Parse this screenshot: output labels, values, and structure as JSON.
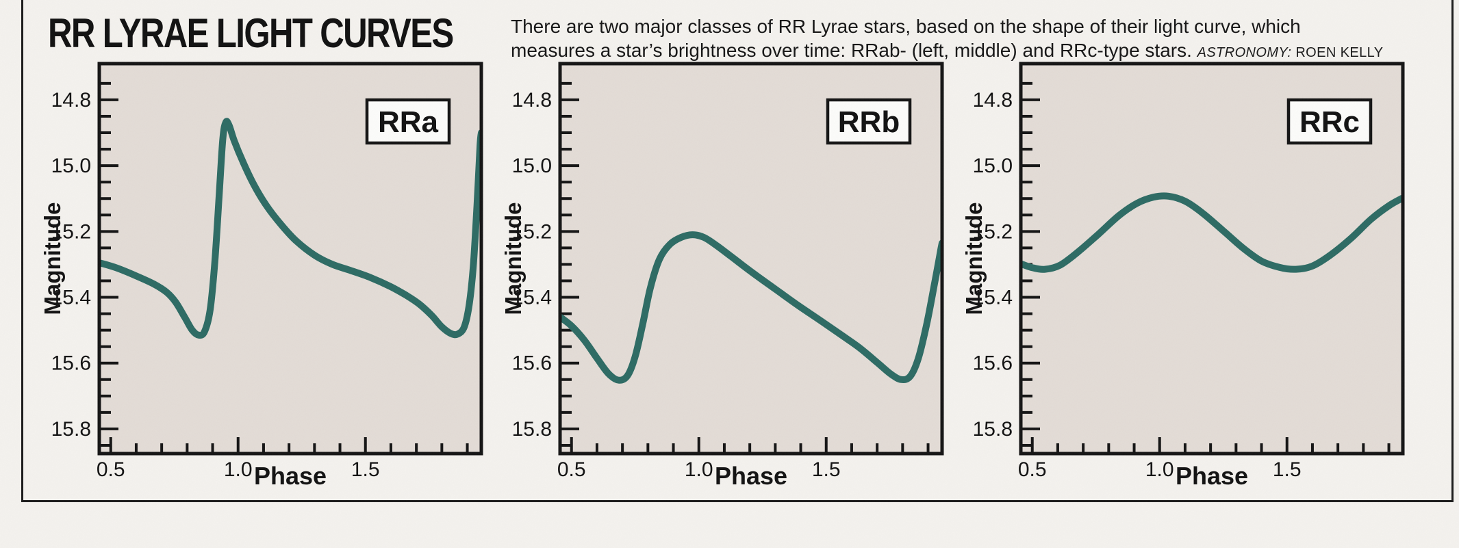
{
  "figure": {
    "title": "RR LYRAE LIGHT CURVES",
    "caption": {
      "line1": "There are two major classes of RR Lyrae stars, based on the shape of their light curve, which",
      "line2": "measures a star’s brightness over time: RRab- (left, middle) and RRc-type stars.",
      "credit_magazine": "ASTRONOMY:",
      "credit_name": " ROEN KELLY"
    },
    "colors": {
      "page_bg": "#f5f3ef",
      "frame_border": "#1b1b1b",
      "plot_bg": "#e4ddd7",
      "curve": "#2d6b64",
      "axis": "#141414",
      "text": "#121212",
      "label_box_bg": "#fdfdfb"
    }
  },
  "chart_data": [
    {
      "type": "line",
      "label": "RRa",
      "star_class": "RRab-type",
      "xlabel": "Phase",
      "ylabel": "Magnitude",
      "x_tick_labels": [
        "0.5",
        "1.0",
        "1.5"
      ],
      "x_tick_values": [
        0.5,
        1.0,
        1.5
      ],
      "x_minor_tick_step": 0.1,
      "y_tick_labels": [
        "14.8",
        "15.0",
        "15.2",
        "15.4",
        "15.6",
        "15.8"
      ],
      "y_tick_values": [
        14.8,
        15.0,
        15.2,
        15.4,
        15.6,
        15.8
      ],
      "y_minor_tick_step": 0.05,
      "xlim": [
        0.455,
        1.955
      ],
      "ylim": [
        14.69,
        15.875
      ],
      "y_axis_inverted_magnitude": true,
      "grid": false,
      "points": [
        [
          0.455,
          15.295
        ],
        [
          0.52,
          15.31
        ],
        [
          0.6,
          15.335
        ],
        [
          0.67,
          15.36
        ],
        [
          0.72,
          15.385
        ],
        [
          0.755,
          15.415
        ],
        [
          0.79,
          15.46
        ],
        [
          0.82,
          15.5
        ],
        [
          0.845,
          15.515
        ],
        [
          0.868,
          15.505
        ],
        [
          0.89,
          15.44
        ],
        [
          0.908,
          15.3
        ],
        [
          0.925,
          15.1
        ],
        [
          0.94,
          14.92
        ],
        [
          0.952,
          14.868
        ],
        [
          0.965,
          14.878
        ],
        [
          0.985,
          14.925
        ],
        [
          1.02,
          14.99
        ],
        [
          1.06,
          15.055
        ],
        [
          1.11,
          15.12
        ],
        [
          1.17,
          15.18
        ],
        [
          1.23,
          15.23
        ],
        [
          1.3,
          15.272
        ],
        [
          1.37,
          15.3
        ],
        [
          1.44,
          15.318
        ],
        [
          1.52,
          15.34
        ],
        [
          1.6,
          15.368
        ],
        [
          1.66,
          15.394
        ],
        [
          1.71,
          15.42
        ],
        [
          1.76,
          15.455
        ],
        [
          1.8,
          15.49
        ],
        [
          1.835,
          15.51
        ],
        [
          1.862,
          15.512
        ],
        [
          1.888,
          15.49
        ],
        [
          1.908,
          15.42
        ],
        [
          1.924,
          15.3
        ],
        [
          1.938,
          15.12
        ],
        [
          1.95,
          14.94
        ],
        [
          1.955,
          14.9
        ]
      ]
    },
    {
      "type": "line",
      "label": "RRb",
      "star_class": "RRab-type",
      "xlabel": "Phase",
      "ylabel": "Magnitude",
      "x_tick_labels": [
        "0.5",
        "1.0",
        "1.5"
      ],
      "x_tick_values": [
        0.5,
        1.0,
        1.5
      ],
      "x_minor_tick_step": 0.1,
      "y_tick_labels": [
        "14.8",
        "15.0",
        "15.2",
        "15.4",
        "15.6",
        "15.8"
      ],
      "y_tick_values": [
        14.8,
        15.0,
        15.2,
        15.4,
        15.6,
        15.8
      ],
      "y_minor_tick_step": 0.05,
      "xlim": [
        0.455,
        1.955
      ],
      "ylim": [
        14.69,
        15.875
      ],
      "y_axis_inverted_magnitude": true,
      "grid": false,
      "points": [
        [
          0.455,
          15.46
        ],
        [
          0.5,
          15.487
        ],
        [
          0.55,
          15.53
        ],
        [
          0.6,
          15.585
        ],
        [
          0.645,
          15.632
        ],
        [
          0.685,
          15.652
        ],
        [
          0.72,
          15.638
        ],
        [
          0.75,
          15.58
        ],
        [
          0.78,
          15.48
        ],
        [
          0.81,
          15.37
        ],
        [
          0.845,
          15.285
        ],
        [
          0.885,
          15.24
        ],
        [
          0.93,
          15.218
        ],
        [
          0.975,
          15.21
        ],
        [
          1.02,
          15.218
        ],
        [
          1.07,
          15.243
        ],
        [
          1.13,
          15.278
        ],
        [
          1.21,
          15.325
        ],
        [
          1.3,
          15.375
        ],
        [
          1.39,
          15.425
        ],
        [
          1.48,
          15.472
        ],
        [
          1.56,
          15.515
        ],
        [
          1.63,
          15.553
        ],
        [
          1.7,
          15.598
        ],
        [
          1.755,
          15.634
        ],
        [
          1.795,
          15.65
        ],
        [
          1.83,
          15.64
        ],
        [
          1.862,
          15.585
        ],
        [
          1.895,
          15.48
        ],
        [
          1.925,
          15.36
        ],
        [
          1.95,
          15.255
        ],
        [
          1.955,
          15.235
        ]
      ]
    },
    {
      "type": "line",
      "label": "RRc",
      "star_class": "RRc-type",
      "xlabel": "Phase",
      "ylabel": "Magnitude",
      "x_tick_labels": [
        "0.5",
        "1.0",
        "1.5"
      ],
      "x_tick_values": [
        0.5,
        1.0,
        1.5
      ],
      "x_minor_tick_step": 0.1,
      "y_tick_labels": [
        "14.8",
        "15.0",
        "15.2",
        "15.4",
        "15.6",
        "15.8"
      ],
      "y_tick_values": [
        14.8,
        15.0,
        15.2,
        15.4,
        15.6,
        15.8
      ],
      "y_minor_tick_step": 0.05,
      "xlim": [
        0.455,
        1.955
      ],
      "ylim": [
        14.69,
        15.875
      ],
      "y_axis_inverted_magnitude": true,
      "grid": false,
      "points": [
        [
          0.455,
          15.298
        ],
        [
          0.5,
          15.31
        ],
        [
          0.55,
          15.315
        ],
        [
          0.61,
          15.302
        ],
        [
          0.68,
          15.262
        ],
        [
          0.76,
          15.208
        ],
        [
          0.84,
          15.152
        ],
        [
          0.91,
          15.115
        ],
        [
          0.975,
          15.096
        ],
        [
          1.035,
          15.093
        ],
        [
          1.1,
          15.108
        ],
        [
          1.17,
          15.145
        ],
        [
          1.25,
          15.198
        ],
        [
          1.33,
          15.252
        ],
        [
          1.4,
          15.29
        ],
        [
          1.47,
          15.309
        ],
        [
          1.535,
          15.315
        ],
        [
          1.6,
          15.305
        ],
        [
          1.67,
          15.272
        ],
        [
          1.75,
          15.222
        ],
        [
          1.83,
          15.163
        ],
        [
          1.9,
          15.122
        ],
        [
          1.95,
          15.1
        ],
        [
          1.955,
          15.099
        ]
      ]
    }
  ]
}
